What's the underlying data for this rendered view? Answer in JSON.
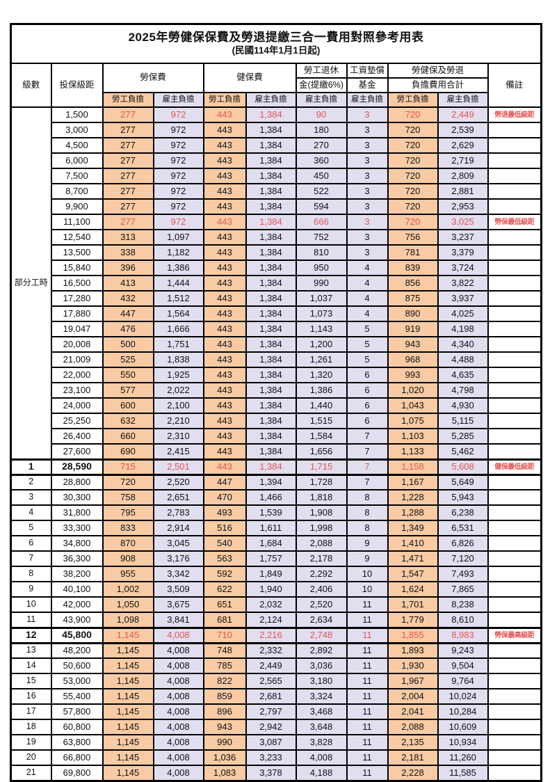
{
  "title": "2025年勞健保保費及勞退提繳三合一費用對照參考用表",
  "subtitle": "(民國114年1月1日起)",
  "header": {
    "level": "級數",
    "bracket": "投保級距",
    "labor": "勞保費",
    "health": "健保費",
    "pension_line1": "勞工退休",
    "pension_line2": "金(提繳6%)",
    "fund_line1": "工資墊償",
    "fund_line2": "基金",
    "total_line1": "勞健保及勞退",
    "total_line2": "負擔費用合計",
    "remark": "備註"
  },
  "sub_headers": [
    "勞工負擔",
    "雇主負擔",
    "勞工負擔",
    "雇主負擔",
    "雇主負擔",
    "雇主負擔",
    "勞工負擔",
    "雇主負擔"
  ],
  "part_time_label": "部分工時",
  "colors": {
    "employee_bg": "#F8CBA4",
    "employer_bg": "#E1DEEF",
    "highlight_red": "#E65353",
    "border": "#000000"
  },
  "rows": [
    {
      "level": "",
      "bracket": "1,500",
      "values": [
        "277",
        "972",
        "443",
        "1,384",
        "90",
        "3",
        "720",
        "2,449"
      ],
      "remark": "勞退最低級距",
      "red": true,
      "emphasis": false
    },
    {
      "level": "",
      "bracket": "3,000",
      "values": [
        "277",
        "972",
        "443",
        "1,384",
        "180",
        "3",
        "720",
        "2,539"
      ],
      "remark": "",
      "red": false,
      "emphasis": false
    },
    {
      "level": "",
      "bracket": "4,500",
      "values": [
        "277",
        "972",
        "443",
        "1,384",
        "270",
        "3",
        "720",
        "2,629"
      ],
      "remark": "",
      "red": false,
      "emphasis": false
    },
    {
      "level": "",
      "bracket": "6,000",
      "values": [
        "277",
        "972",
        "443",
        "1,384",
        "360",
        "3",
        "720",
        "2,719"
      ],
      "remark": "",
      "red": false,
      "emphasis": false
    },
    {
      "level": "",
      "bracket": "7,500",
      "values": [
        "277",
        "972",
        "443",
        "1,384",
        "450",
        "3",
        "720",
        "2,809"
      ],
      "remark": "",
      "red": false,
      "emphasis": false
    },
    {
      "level": "",
      "bracket": "8,700",
      "values": [
        "277",
        "972",
        "443",
        "1,384",
        "522",
        "3",
        "720",
        "2,881"
      ],
      "remark": "",
      "red": false,
      "emphasis": false
    },
    {
      "level": "",
      "bracket": "9,900",
      "values": [
        "277",
        "972",
        "443",
        "1,384",
        "594",
        "3",
        "720",
        "2,953"
      ],
      "remark": "",
      "red": false,
      "emphasis": false
    },
    {
      "level": "",
      "bracket": "11,100",
      "values": [
        "277",
        "972",
        "443",
        "1,384",
        "666",
        "3",
        "720",
        "3,025"
      ],
      "remark": "勞保最低級距",
      "red": true,
      "emphasis": false
    },
    {
      "level": "",
      "bracket": "12,540",
      "values": [
        "313",
        "1,097",
        "443",
        "1,384",
        "752",
        "3",
        "756",
        "3,237"
      ],
      "remark": "",
      "red": false,
      "emphasis": false
    },
    {
      "level": "",
      "bracket": "13,500",
      "values": [
        "338",
        "1,182",
        "443",
        "1,384",
        "810",
        "3",
        "781",
        "3,379"
      ],
      "remark": "",
      "red": false,
      "emphasis": false
    },
    {
      "level": "",
      "bracket": "15,840",
      "values": [
        "396",
        "1,386",
        "443",
        "1,384",
        "950",
        "4",
        "839",
        "3,724"
      ],
      "remark": "",
      "red": false,
      "emphasis": false
    },
    {
      "level": "",
      "bracket": "16,500",
      "values": [
        "413",
        "1,444",
        "443",
        "1,384",
        "990",
        "4",
        "856",
        "3,822"
      ],
      "remark": "",
      "red": false,
      "emphasis": false
    },
    {
      "level": "",
      "bracket": "17,280",
      "values": [
        "432",
        "1,512",
        "443",
        "1,384",
        "1,037",
        "4",
        "875",
        "3,937"
      ],
      "remark": "",
      "red": false,
      "emphasis": false
    },
    {
      "level": "",
      "bracket": "17,880",
      "values": [
        "447",
        "1,564",
        "443",
        "1,384",
        "1,073",
        "4",
        "890",
        "4,025"
      ],
      "remark": "",
      "red": false,
      "emphasis": false
    },
    {
      "level": "",
      "bracket": "19,047",
      "values": [
        "476",
        "1,666",
        "443",
        "1,384",
        "1,143",
        "5",
        "919",
        "4,198"
      ],
      "remark": "",
      "red": false,
      "emphasis": false
    },
    {
      "level": "",
      "bracket": "20,008",
      "values": [
        "500",
        "1,751",
        "443",
        "1,384",
        "1,200",
        "5",
        "943",
        "4,340"
      ],
      "remark": "",
      "red": false,
      "emphasis": false
    },
    {
      "level": "",
      "bracket": "21,009",
      "values": [
        "525",
        "1,838",
        "443",
        "1,384",
        "1,261",
        "5",
        "968",
        "4,488"
      ],
      "remark": "",
      "red": false,
      "emphasis": false
    },
    {
      "level": "",
      "bracket": "22,000",
      "values": [
        "550",
        "1,925",
        "443",
        "1,384",
        "1,320",
        "6",
        "993",
        "4,635"
      ],
      "remark": "",
      "red": false,
      "emphasis": false
    },
    {
      "level": "",
      "bracket": "23,100",
      "values": [
        "577",
        "2,022",
        "443",
        "1,384",
        "1,386",
        "6",
        "1,020",
        "4,798"
      ],
      "remark": "",
      "red": false,
      "emphasis": false
    },
    {
      "level": "",
      "bracket": "24,000",
      "values": [
        "600",
        "2,100",
        "443",
        "1,384",
        "1,440",
        "6",
        "1,043",
        "4,930"
      ],
      "remark": "",
      "red": false,
      "emphasis": false
    },
    {
      "level": "",
      "bracket": "25,250",
      "values": [
        "632",
        "2,210",
        "443",
        "1,384",
        "1,515",
        "6",
        "1,075",
        "5,115"
      ],
      "remark": "",
      "red": false,
      "emphasis": false
    },
    {
      "level": "",
      "bracket": "26,400",
      "values": [
        "660",
        "2,310",
        "443",
        "1,384",
        "1,584",
        "7",
        "1,103",
        "5,285"
      ],
      "remark": "",
      "red": false,
      "emphasis": false
    },
    {
      "level": "",
      "bracket": "27,600",
      "values": [
        "690",
        "2,415",
        "443",
        "1,384",
        "1,656",
        "7",
        "1,133",
        "5,462"
      ],
      "remark": "",
      "red": false,
      "emphasis": false
    },
    {
      "level": "1",
      "bracket": "28,590",
      "values": [
        "715",
        "2,501",
        "443",
        "1,384",
        "1,715",
        "7",
        "1,158",
        "5,608"
      ],
      "remark": "健保最低級距",
      "red": true,
      "emphasis": true
    },
    {
      "level": "2",
      "bracket": "28,800",
      "values": [
        "720",
        "2,520",
        "447",
        "1,394",
        "1,728",
        "7",
        "1,167",
        "5,649"
      ],
      "remark": "",
      "red": false,
      "emphasis": false
    },
    {
      "level": "3",
      "bracket": "30,300",
      "values": [
        "758",
        "2,651",
        "470",
        "1,466",
        "1,818",
        "8",
        "1,228",
        "5,943"
      ],
      "remark": "",
      "red": false,
      "emphasis": false
    },
    {
      "level": "4",
      "bracket": "31,800",
      "values": [
        "795",
        "2,783",
        "493",
        "1,539",
        "1,908",
        "8",
        "1,288",
        "6,238"
      ],
      "remark": "",
      "red": false,
      "emphasis": false
    },
    {
      "level": "5",
      "bracket": "33,300",
      "values": [
        "833",
        "2,914",
        "516",
        "1,611",
        "1,998",
        "8",
        "1,349",
        "6,531"
      ],
      "remark": "",
      "red": false,
      "emphasis": false
    },
    {
      "level": "6",
      "bracket": "34,800",
      "values": [
        "870",
        "3,045",
        "540",
        "1,684",
        "2,088",
        "9",
        "1,410",
        "6,826"
      ],
      "remark": "",
      "red": false,
      "emphasis": false
    },
    {
      "level": "7",
      "bracket": "36,300",
      "values": [
        "908",
        "3,176",
        "563",
        "1,757",
        "2,178",
        "9",
        "1,471",
        "7,120"
      ],
      "remark": "",
      "red": false,
      "emphasis": false
    },
    {
      "level": "8",
      "bracket": "38,200",
      "values": [
        "955",
        "3,342",
        "592",
        "1,849",
        "2,292",
        "10",
        "1,547",
        "7,493"
      ],
      "remark": "",
      "red": false,
      "emphasis": false
    },
    {
      "level": "9",
      "bracket": "40,100",
      "values": [
        "1,002",
        "3,509",
        "622",
        "1,940",
        "2,406",
        "10",
        "1,624",
        "7,865"
      ],
      "remark": "",
      "red": false,
      "emphasis": false
    },
    {
      "level": "10",
      "bracket": "42,000",
      "values": [
        "1,050",
        "3,675",
        "651",
        "2,032",
        "2,520",
        "11",
        "1,701",
        "8,238"
      ],
      "remark": "",
      "red": false,
      "emphasis": false
    },
    {
      "level": "11",
      "bracket": "43,900",
      "values": [
        "1,098",
        "3,841",
        "681",
        "2,124",
        "2,634",
        "11",
        "1,779",
        "8,610"
      ],
      "remark": "",
      "red": false,
      "emphasis": false
    },
    {
      "level": "12",
      "bracket": "45,800",
      "values": [
        "1,145",
        "4,008",
        "710",
        "2,216",
        "2,748",
        "11",
        "1,855",
        "8,983"
      ],
      "remark": "勞保最高級距",
      "red": true,
      "emphasis": true
    },
    {
      "level": "13",
      "bracket": "48,200",
      "values": [
        "1,145",
        "4,008",
        "748",
        "2,332",
        "2,892",
        "11",
        "1,893",
        "9,243"
      ],
      "remark": "",
      "red": false,
      "emphasis": false
    },
    {
      "level": "14",
      "bracket": "50,600",
      "values": [
        "1,145",
        "4,008",
        "785",
        "2,449",
        "3,036",
        "11",
        "1,930",
        "9,504"
      ],
      "remark": "",
      "red": false,
      "emphasis": false
    },
    {
      "level": "15",
      "bracket": "53,000",
      "values": [
        "1,145",
        "4,008",
        "822",
        "2,565",
        "3,180",
        "11",
        "1,967",
        "9,764"
      ],
      "remark": "",
      "red": false,
      "emphasis": false
    },
    {
      "level": "16",
      "bracket": "55,400",
      "values": [
        "1,145",
        "4,008",
        "859",
        "2,681",
        "3,324",
        "11",
        "2,004",
        "10,024"
      ],
      "remark": "",
      "red": false,
      "emphasis": false
    },
    {
      "level": "17",
      "bracket": "57,800",
      "values": [
        "1,145",
        "4,008",
        "896",
        "2,797",
        "3,468",
        "11",
        "2,041",
        "10,284"
      ],
      "remark": "",
      "red": false,
      "emphasis": false
    },
    {
      "level": "18",
      "bracket": "60,800",
      "values": [
        "1,145",
        "4,008",
        "943",
        "2,942",
        "3,648",
        "11",
        "2,088",
        "10,609"
      ],
      "remark": "",
      "red": false,
      "emphasis": false
    },
    {
      "level": "19",
      "bracket": "63,800",
      "values": [
        "1,145",
        "4,008",
        "990",
        "3,087",
        "3,828",
        "11",
        "2,135",
        "10,934"
      ],
      "remark": "",
      "red": false,
      "emphasis": false
    },
    {
      "level": "20",
      "bracket": "66,800",
      "values": [
        "1,145",
        "4,008",
        "1,036",
        "3,233",
        "4,008",
        "11",
        "2,181",
        "11,260"
      ],
      "remark": "",
      "red": false,
      "emphasis": false
    },
    {
      "level": "21",
      "bracket": "69,800",
      "values": [
        "1,145",
        "4,008",
        "1,083",
        "3,378",
        "4,188",
        "11",
        "2,228",
        "11,585"
      ],
      "remark": "",
      "red": false,
      "emphasis": false
    }
  ]
}
